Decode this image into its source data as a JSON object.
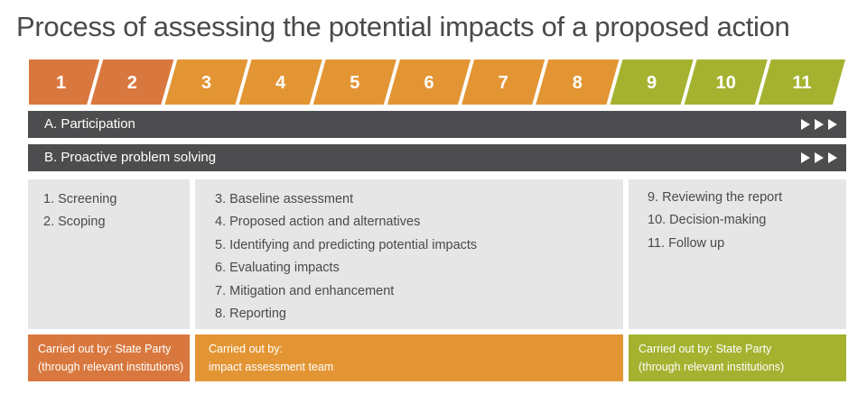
{
  "title": "Process of assessing the potential impacts of a proposed action",
  "colors": {
    "stage_a": "#d9783e",
    "stage_b": "#e39534",
    "stage_c": "#a4b22f",
    "bar": "#4d4d4f",
    "panel": "#e6e6e6",
    "text": "#4a4a4a"
  },
  "steps": [
    "1",
    "2",
    "3",
    "4",
    "5",
    "6",
    "7",
    "8",
    "9",
    "10",
    "11"
  ],
  "step_groups": [
    "a",
    "a",
    "b",
    "b",
    "b",
    "b",
    "b",
    "b",
    "c",
    "c",
    "c"
  ],
  "bars": {
    "participation": "A. Participation",
    "problem_solving": "B. Proactive problem solving"
  },
  "panels": {
    "left": [
      "1. Screening",
      "2. Scoping"
    ],
    "middle": [
      "3. Baseline assessment",
      "4. Proposed action and alternatives",
      "5. Identifying and predicting potential impacts",
      "6. Evaluating impacts",
      "7. Mitigation and enhancement",
      "8. Reporting"
    ],
    "right": [
      "9. Reviewing the report",
      "10. Decision-making",
      "11. Follow up"
    ]
  },
  "carriers": {
    "left": [
      "Carried out by: State Party",
      "(through relevant institutions)"
    ],
    "middle": [
      "Carried out by:",
      "impact assessment team"
    ],
    "right": [
      "Carried out by: State Party",
      "(through relevant institutions)"
    ]
  }
}
